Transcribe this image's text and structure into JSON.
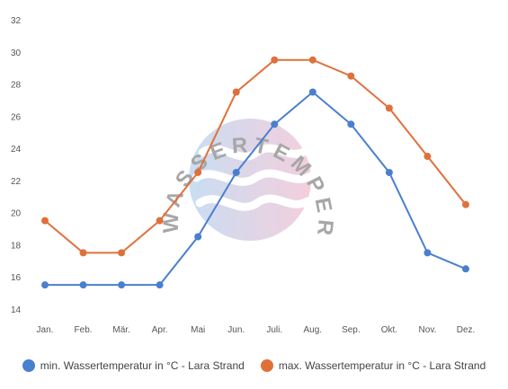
{
  "watermark": {
    "text": "WASSERTEMPERATUR.ORG"
  },
  "colors": {
    "min": "#4a7fcf",
    "max": "#e0703a",
    "grid": "#e6e6e6"
  },
  "chart_data": {
    "type": "line",
    "categories": [
      "Jan.",
      "Feb.",
      "Mär.",
      "Apr.",
      "Mai",
      "Jun.",
      "Juli.",
      "Aug.",
      "Sep.",
      "Okt.",
      "Nov.",
      "Dez."
    ],
    "yticks": [
      "14",
      "16",
      "18",
      "20",
      "22",
      "24",
      "26",
      "28",
      "30",
      "32"
    ],
    "ylim": [
      14,
      32
    ],
    "grid": "none",
    "legend_position": "bottom",
    "series": [
      {
        "name": "min. Wassertemperatur in °C - Lara Strand",
        "color": "#4a7fcf",
        "values": [
          15.5,
          15.5,
          15.5,
          15.5,
          18.5,
          22.5,
          25.5,
          27.5,
          25.5,
          22.5,
          17.5,
          16.5
        ]
      },
      {
        "name": "max. Wassertemperatur in °C - Lara Strand",
        "color": "#e0703a",
        "values": [
          19.5,
          17.5,
          17.5,
          19.5,
          22.5,
          27.5,
          29.5,
          29.5,
          28.5,
          26.5,
          23.5,
          20.5
        ]
      }
    ]
  }
}
